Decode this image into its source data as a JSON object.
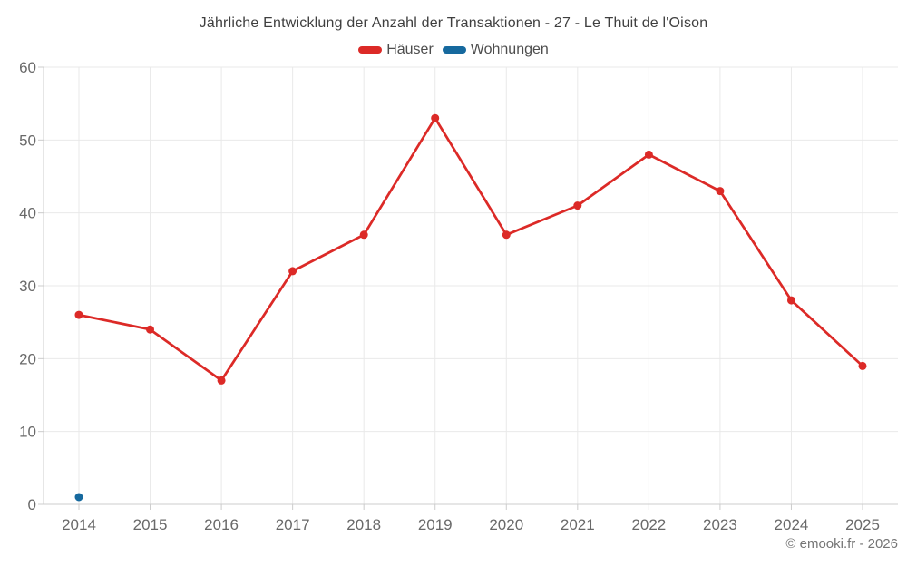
{
  "page": {
    "title": "Jährliche Entwicklung der Anzahl der Transaktionen - 27 - Le Thuit de l'Oison",
    "copyright": "© emooki.fr - 2026"
  },
  "legend": [
    {
      "label": "Häuser",
      "color": "#dc2a27"
    },
    {
      "label": "Wohnungen",
      "color": "#16699e"
    }
  ],
  "chart_data": {
    "type": "line",
    "title": "Jährliche Entwicklung der Anzahl der Transaktionen - 27 - Le Thuit de l'Oison",
    "categories": [
      "2014",
      "2015",
      "2016",
      "2017",
      "2018",
      "2019",
      "2020",
      "2021",
      "2022",
      "2023",
      "2024",
      "2025"
    ],
    "series": [
      {
        "name": "Häuser",
        "color": "#dc2a27",
        "values": [
          26,
          24,
          17,
          32,
          37,
          53,
          37,
          41,
          48,
          43,
          28,
          19
        ]
      },
      {
        "name": "Wohnungen",
        "color": "#16699e",
        "values": [
          1,
          null,
          null,
          null,
          null,
          null,
          null,
          null,
          null,
          null,
          null,
          null
        ]
      }
    ],
    "xlabel": "",
    "ylabel": "",
    "ylim": [
      0,
      60
    ],
    "ytick_step": 10,
    "yticks": [
      0,
      10,
      20,
      30,
      40,
      50,
      60
    ],
    "grid": true,
    "legend_position": "top"
  },
  "style_colors": {
    "grid": "#e9e9e9",
    "axis": "#cccccc",
    "tick_label": "#696969",
    "title": "#3f3f3f",
    "legend_label": "#4d4d4d",
    "footer": "#757575"
  }
}
